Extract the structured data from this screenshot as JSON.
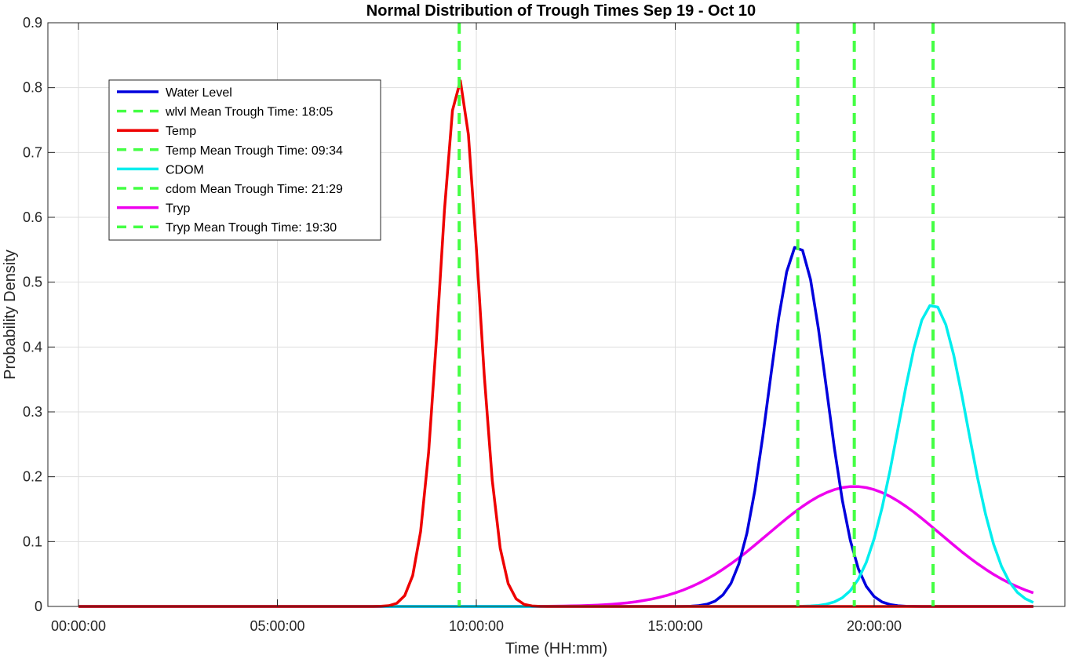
{
  "chart_data": {
    "type": "line",
    "title": "Normal Distribution of Trough Times Sep 19 - Oct 10",
    "xlabel": "Time (HH:mm)",
    "ylabel": "Probability Density",
    "x_unit": "hours",
    "xlim": [
      0,
      24
    ],
    "ylim": [
      0,
      0.9
    ],
    "x_ticks": [
      0,
      5,
      10,
      15,
      20
    ],
    "x_tick_labels": [
      "00:00:00",
      "05:00:00",
      "10:00:00",
      "15:00:00",
      "20:00:00"
    ],
    "y_ticks": [
      0,
      0.1,
      0.2,
      0.3,
      0.4,
      0.5,
      0.6,
      0.7,
      0.8,
      0.9
    ],
    "y_tick_labels": [
      "0",
      "0.1",
      "0.2",
      "0.3",
      "0.4",
      "0.5",
      "0.6",
      "0.7",
      "0.8",
      "0.9"
    ],
    "grid": true,
    "legend_position": "top-left",
    "series": [
      {
        "name": "Water Level",
        "color": "#0000dd",
        "style": "solid",
        "mean": 18.08,
        "peak": 0.557,
        "sigma": 0.716
      },
      {
        "name": "wlvl Mean Trough Time: 18:05",
        "color": "#44ff44",
        "style": "dashed",
        "x": 18.08
      },
      {
        "name": "Temp",
        "color": "#ee0000",
        "style": "solid",
        "mean": 9.57,
        "peak": 0.812,
        "sigma": 0.491
      },
      {
        "name": "Temp Mean Trough Time: 09:34",
        "color": "#44ff44",
        "style": "dashed",
        "x": 9.57
      },
      {
        "name": "CDOM",
        "color": "#00eeee",
        "style": "solid",
        "mean": 21.48,
        "peak": 0.466,
        "sigma": 0.856
      },
      {
        "name": "cdom Mean Trough Time: 21:29",
        "color": "#44ff44",
        "style": "dashed",
        "x": 21.48
      },
      {
        "name": "Tryp",
        "color": "#ee00ee",
        "style": "solid",
        "mean": 19.5,
        "peak": 0.185,
        "sigma": 2.156
      },
      {
        "name": "Tryp Mean Trough Time: 19:30",
        "color": "#44ff44",
        "style": "dashed",
        "x": 19.5
      }
    ]
  }
}
